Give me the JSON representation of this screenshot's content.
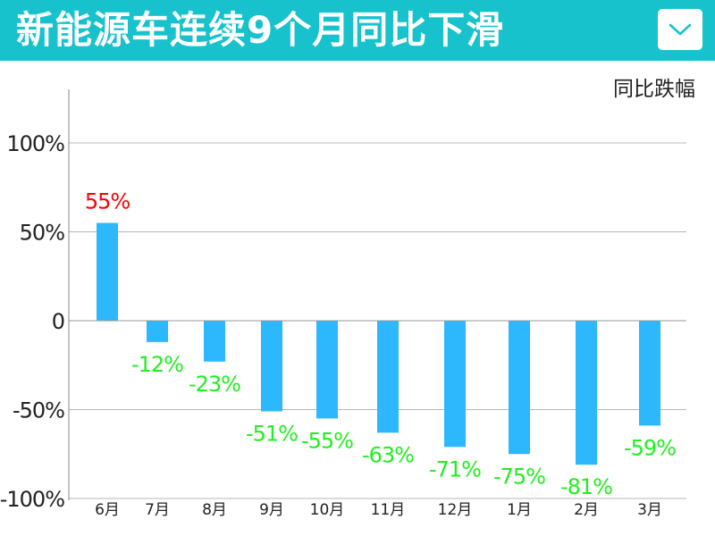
{
  "header": {
    "title": "新能源车连续9个月同比下滑",
    "background_color": "#17c2cc",
    "dropdown_icon": "chevron-down-icon"
  },
  "chart_data": {
    "type": "bar",
    "title": "新能源车连续9个月同比下滑",
    "unit_label": "同比跌幅",
    "categories": [
      "6月",
      "7月",
      "8月",
      "9月",
      "10月",
      "11月",
      "12月",
      "1月",
      "2月",
      "3月"
    ],
    "values": [
      55,
      -12,
      -23,
      -51,
      -55,
      -63,
      -71,
      -75,
      -81,
      -59
    ],
    "value_labels": [
      "55%",
      "-12%",
      "-23%",
      "-51%",
      "-55%",
      "-63%",
      "-71%",
      "-75%",
      "-81%",
      "-59%"
    ],
    "y_ticks": [
      100,
      50,
      0,
      -50,
      -100
    ],
    "y_tick_labels": [
      "100%",
      "50%",
      "0",
      "-50%",
      "-100%"
    ],
    "ylim": [
      -100,
      125
    ],
    "grid": true,
    "bar_color": "#2db7fd",
    "positive_label_color": "#ff0000",
    "negative_label_color": "#22ee22"
  }
}
